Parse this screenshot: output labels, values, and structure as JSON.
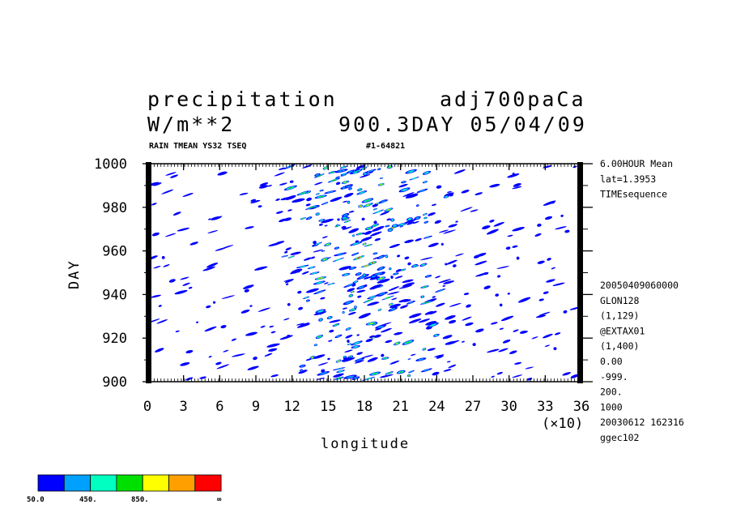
{
  "header": {
    "title_left": "precipitation",
    "title_right": "adj700paCa",
    "units": "W/m**2",
    "time_info": "900.3DAY 05/04/09",
    "subtitle_left": "RAIN TMEAN YS32 TSEQ",
    "subtitle_right": "#1-64821"
  },
  "info_panel": {
    "top": [
      "6.00HOUR Mean",
      "lat=1.3953",
      "TIMEsequence"
    ],
    "bottom": [
      "20050409060000",
      "GLON128",
      "(1,129)",
      "@EXTAX01",
      "(1,400)",
      "0.00",
      "-999.",
      "200.",
      "1000",
      "20030612 162316",
      "ggec102"
    ]
  },
  "colorbar": {
    "colors": [
      "#0000ff",
      "#00a0ff",
      "#00ffc0",
      "#00e000",
      "#ffff00",
      "#ffa000",
      "#ff0000"
    ],
    "labels": [
      "50.0",
      "450.",
      "850.",
      "∞"
    ]
  },
  "chart_data": {
    "type": "heatmap",
    "xlabel": "longitude",
    "ylabel": "DAY",
    "x_multiplier": "(×10)",
    "xlim": [
      0,
      36
    ],
    "ylim": [
      900,
      1000
    ],
    "x_ticks": [
      "0",
      "3",
      "6",
      "9",
      "12",
      "15",
      "18",
      "21",
      "24",
      "27",
      "30",
      "33",
      "36"
    ],
    "y_ticks": [
      "900",
      "920",
      "940",
      "960",
      "980",
      "1000"
    ],
    "contour_levels": [
      50,
      250,
      450,
      650,
      850,
      1050
    ]
  }
}
